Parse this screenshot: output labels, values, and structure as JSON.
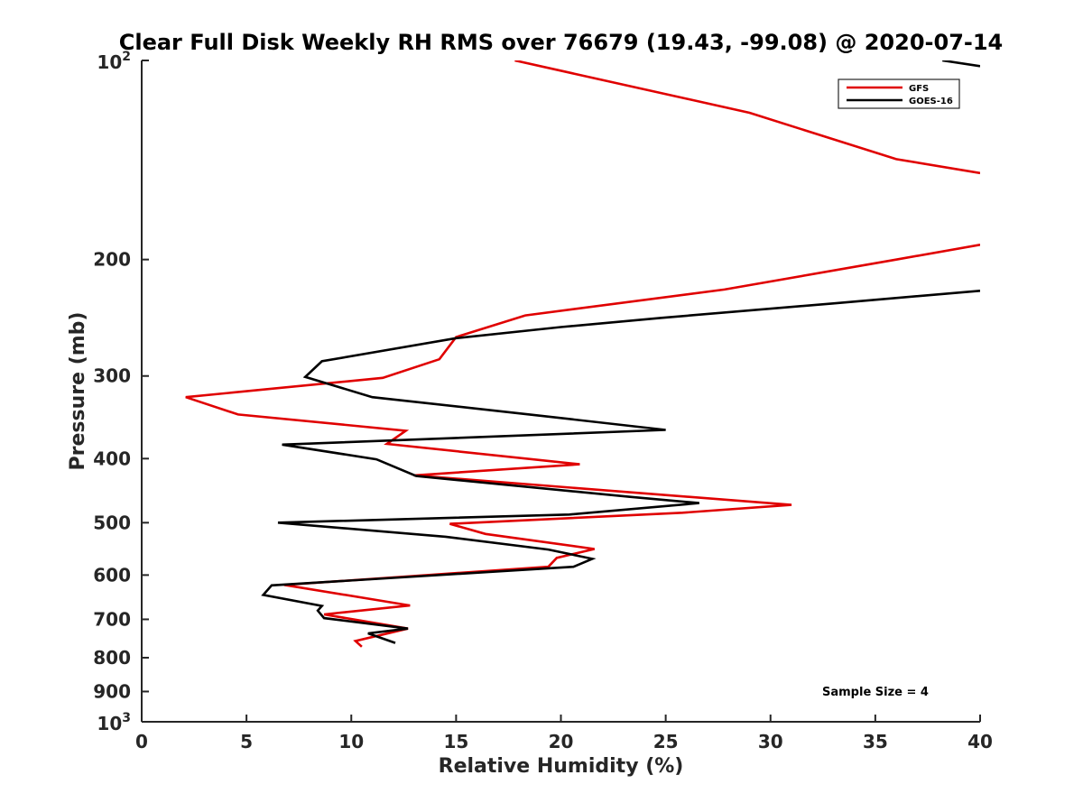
{
  "chart_data": {
    "type": "line",
    "title": "Clear Full Disk Weekly RH RMS over 76679 (19.43, -99.08) @ 2020-07-14",
    "xlabel": "Relative Humidity (%)",
    "ylabel": "Pressure (mb)",
    "xlim": [
      0,
      40
    ],
    "ylim": [
      100,
      1000
    ],
    "yscale": "log",
    "y_reversed": true,
    "grid": false,
    "legend_position": "top-right",
    "x_ticks": [
      0,
      5,
      10,
      15,
      20,
      25,
      30,
      35,
      40
    ],
    "x_tick_labels": [
      "0",
      "5",
      "10",
      "15",
      "20",
      "25",
      "30",
      "35",
      "40"
    ],
    "y_ticks": [
      {
        "value": 100,
        "base": "10",
        "exp": "2",
        "label": ""
      },
      {
        "value": 200,
        "label": "200"
      },
      {
        "value": 300,
        "label": "300"
      },
      {
        "value": 400,
        "label": "400"
      },
      {
        "value": 500,
        "label": "500"
      },
      {
        "value": 600,
        "label": "600"
      },
      {
        "value": 700,
        "label": "700"
      },
      {
        "value": 800,
        "label": "800"
      },
      {
        "value": 900,
        "label": "900"
      },
      {
        "value": 1000,
        "base": "10",
        "exp": "3",
        "label": ""
      }
    ],
    "annotation": "Sample Size = 4",
    "series": [
      {
        "name": "GFS",
        "color": "#e00000",
        "segments": [
          {
            "x": [
              17.8,
              29.0,
              36.0,
              40.0
            ],
            "y": [
              100,
              120,
              141,
              148
            ]
          },
          {
            "x": [
              40.0,
              36.0,
              27.8,
              18.3,
              15.0,
              14.2,
              11.5,
              2.1,
              4.6,
              12.6,
              11.7,
              20.9,
              13.0,
              31.0,
              25.8,
              14.7,
              16.4,
              21.6,
              19.8,
              19.4,
              6.8,
              12.8,
              8.7,
              12.7,
              10.2,
              10.5
            ],
            "y": [
              190,
              200,
              222,
              243,
              262,
              283,
              302,
              323,
              343,
              363,
              380,
              408,
              424,
              470,
              483,
              502,
              520,
              548,
              565,
              583,
              621,
              667,
              688,
              723,
              755,
              770
            ]
          }
        ]
      },
      {
        "name": "GOES-16",
        "color": "#000000",
        "segments": [
          {
            "x": [
              38.2,
              40.0
            ],
            "y": [
              100,
              102
            ]
          },
          {
            "x": [
              40.0,
              33.0,
              24.8,
              20.0,
              15.0,
              8.6,
              7.8,
              11.0,
              18.5,
              25.0,
              6.7,
              11.2,
              13.1,
              23.3,
              26.6,
              20.4,
              6.5,
              14.5,
              19.4,
              21.5,
              20.6,
              6.2,
              5.8,
              8.6,
              8.4,
              8.7,
              12.7,
              10.8,
              12.1
            ],
            "y": [
              223,
              233,
              245,
              253,
              263,
              285,
              301,
              323,
              343,
              362,
              381,
              401,
              425,
              457,
              467,
              486,
              500,
              525,
              549,
              567,
              583,
              622,
              643,
              668,
              679,
              697,
              723,
              735,
              760
            ]
          }
        ]
      }
    ]
  }
}
